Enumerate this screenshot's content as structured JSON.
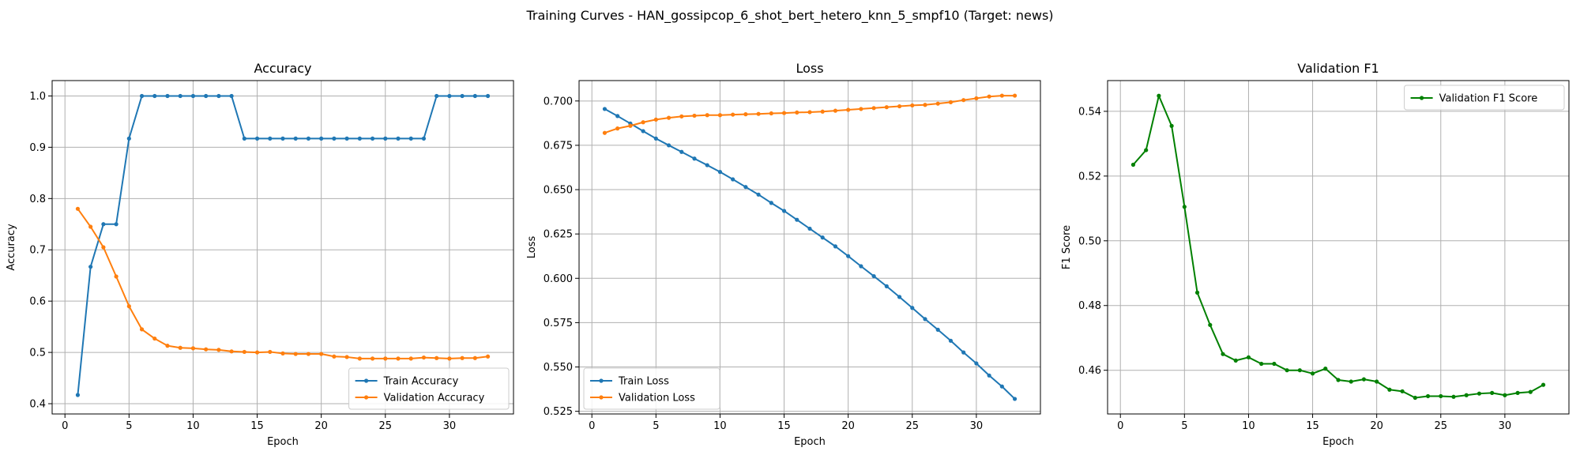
{
  "figure": {
    "title": "Training Curves - HAN_gossipcop_6_shot_bert_hetero_knn_5_smpf10 (Target: news)"
  },
  "chart_data": [
    {
      "type": "line",
      "title": "Accuracy",
      "xlabel": "Epoch",
      "ylabel": "Accuracy",
      "xlim": [
        -1,
        35
      ],
      "ylim": [
        0.38,
        1.03
      ],
      "xticks": [
        0,
        5,
        10,
        15,
        20,
        25,
        30
      ],
      "yticks": [
        0.4,
        0.5,
        0.6,
        0.7,
        0.8,
        0.9,
        1.0
      ],
      "ytick_decimals": 1,
      "grid": true,
      "legend_position": "lower-right",
      "x": [
        1,
        2,
        3,
        4,
        5,
        6,
        7,
        8,
        9,
        10,
        11,
        12,
        13,
        14,
        15,
        16,
        17,
        18,
        19,
        20,
        21,
        22,
        23,
        24,
        25,
        26,
        27,
        28,
        29,
        30,
        31,
        32,
        33
      ],
      "series": [
        {
          "name": "Train Accuracy",
          "color": "#1f77b4",
          "values": [
            0.417,
            0.667,
            0.75,
            0.75,
            0.917,
            1.0,
            1.0,
            1.0,
            1.0,
            1.0,
            1.0,
            1.0,
            1.0,
            0.917,
            0.917,
            0.917,
            0.917,
            0.917,
            0.917,
            0.917,
            0.917,
            0.917,
            0.917,
            0.917,
            0.917,
            0.917,
            0.917,
            0.917,
            1.0,
            1.0,
            1.0,
            1.0,
            1.0
          ]
        },
        {
          "name": "Validation Accuracy",
          "color": "#ff7f0e",
          "values": [
            0.78,
            0.745,
            0.705,
            0.648,
            0.59,
            0.545,
            0.527,
            0.513,
            0.509,
            0.508,
            0.506,
            0.505,
            0.502,
            0.501,
            0.5,
            0.501,
            0.498,
            0.497,
            0.497,
            0.497,
            0.492,
            0.491,
            0.488,
            0.488,
            0.488,
            0.488,
            0.488,
            0.49,
            0.489,
            0.488,
            0.489,
            0.489,
            0.492
          ]
        }
      ]
    },
    {
      "type": "line",
      "title": "Loss",
      "xlabel": "Epoch",
      "ylabel": "Loss",
      "xlim": [
        -1,
        35
      ],
      "ylim": [
        0.5235,
        0.7115
      ],
      "xticks": [
        0,
        5,
        10,
        15,
        20,
        25,
        30
      ],
      "yticks": [
        0.525,
        0.55,
        0.575,
        0.6,
        0.625,
        0.65,
        0.675,
        0.7
      ],
      "ytick_decimals": 3,
      "grid": true,
      "legend_position": "lower-left",
      "x": [
        1,
        2,
        3,
        4,
        5,
        6,
        7,
        8,
        9,
        10,
        11,
        12,
        13,
        14,
        15,
        16,
        17,
        18,
        19,
        20,
        21,
        22,
        23,
        24,
        25,
        26,
        27,
        28,
        29,
        30,
        31,
        32,
        33
      ],
      "series": [
        {
          "name": "Train Loss",
          "color": "#1f77b4",
          "values": [
            0.6955,
            0.6915,
            0.6873,
            0.683,
            0.6788,
            0.675,
            0.6713,
            0.6675,
            0.6638,
            0.66,
            0.6558,
            0.6515,
            0.6472,
            0.6425,
            0.638,
            0.633,
            0.628,
            0.623,
            0.618,
            0.6125,
            0.6068,
            0.6012,
            0.5955,
            0.5895,
            0.5833,
            0.577,
            0.571,
            0.5648,
            0.5582,
            0.552,
            0.5452,
            0.539,
            0.532
          ]
        },
        {
          "name": "Validation Loss",
          "color": "#ff7f0e",
          "values": [
            0.682,
            0.6845,
            0.686,
            0.688,
            0.6895,
            0.6905,
            0.6913,
            0.6917,
            0.692,
            0.692,
            0.6923,
            0.6925,
            0.6927,
            0.693,
            0.6932,
            0.6935,
            0.6937,
            0.694,
            0.6945,
            0.695,
            0.6955,
            0.696,
            0.6965,
            0.697,
            0.6975,
            0.6978,
            0.6985,
            0.6993,
            0.7005,
            0.7015,
            0.7025,
            0.703,
            0.703
          ]
        }
      ]
    },
    {
      "type": "line",
      "title": "Validation F1",
      "xlabel": "Epoch",
      "ylabel": "F1 Score",
      "xlim": [
        -1,
        35
      ],
      "ylim": [
        0.4465,
        0.5495
      ],
      "xticks": [
        0,
        5,
        10,
        15,
        20,
        25,
        30
      ],
      "yticks": [
        0.46,
        0.48,
        0.5,
        0.52,
        0.54
      ],
      "ytick_decimals": 2,
      "grid": true,
      "legend_position": "upper-right",
      "x": [
        1,
        2,
        3,
        4,
        5,
        6,
        7,
        8,
        9,
        10,
        11,
        12,
        13,
        14,
        15,
        16,
        17,
        18,
        19,
        20,
        21,
        22,
        23,
        24,
        25,
        26,
        27,
        28,
        29,
        30,
        31,
        32,
        33
      ],
      "series": [
        {
          "name": "Validation F1 Score",
          "color": "#008000",
          "values": [
            0.5235,
            0.528,
            0.5448,
            0.5355,
            0.5105,
            0.484,
            0.474,
            0.465,
            0.463,
            0.464,
            0.462,
            0.462,
            0.46,
            0.46,
            0.459,
            0.4605,
            0.457,
            0.4565,
            0.4572,
            0.4565,
            0.454,
            0.4535,
            0.4515,
            0.452,
            0.452,
            0.4518,
            0.4523,
            0.4528,
            0.453,
            0.4523,
            0.453,
            0.4533,
            0.4555
          ]
        }
      ]
    }
  ]
}
